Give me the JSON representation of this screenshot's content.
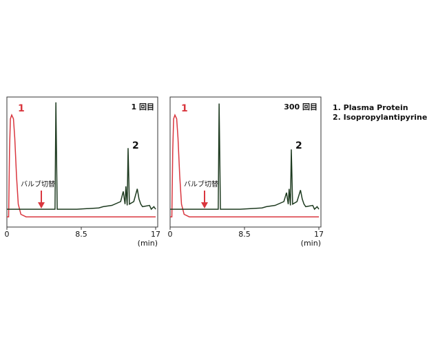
{
  "chart_data": [
    {
      "type": "line",
      "title": "1 回目",
      "xlabel": "(min)",
      "xlim": [
        0,
        17
      ],
      "xticks": [
        0,
        8.5,
        17
      ],
      "ylim": [
        0,
        100
      ],
      "annotations": [
        "1",
        "2",
        "バルブ切替"
      ],
      "series": [
        {
          "color": "#d9363e",
          "x": [
            0,
            0.2,
            0.3,
            0.4,
            0.55,
            0.75,
            0.9,
            1.1,
            1.3,
            1.6,
            2.2,
            17
          ],
          "values": [
            8,
            8,
            60,
            85,
            88,
            85,
            70,
            40,
            18,
            10,
            8,
            8
          ]
        },
        {
          "color": "#1d3a1f",
          "x": [
            0,
            5.5,
            5.6,
            5.75,
            8,
            10.5,
            11,
            12,
            13,
            13.3,
            13.5,
            13.6,
            13.75,
            13.85,
            14,
            14.5,
            14.9,
            15.1,
            15.3,
            15.5,
            16.3,
            16.5,
            16.8,
            17
          ],
          "values": [
            14,
            14,
            98,
            14,
            14,
            15,
            16,
            17,
            20,
            28,
            18,
            32,
            17,
            62,
            18,
            20,
            30,
            22,
            18,
            16,
            17,
            14,
            16,
            14
          ]
        }
      ]
    },
    {
      "type": "line",
      "title": "300 回目",
      "xlabel": "(min)",
      "xlim": [
        0,
        17
      ],
      "xticks": [
        0,
        8.5,
        17
      ],
      "ylim": [
        0,
        100
      ],
      "annotations": [
        "1",
        "2",
        "バルブ切替"
      ],
      "series": [
        {
          "color": "#d9363e",
          "x": [
            0,
            0.2,
            0.3,
            0.4,
            0.55,
            0.75,
            0.9,
            1.1,
            1.3,
            1.6,
            2.2,
            17
          ],
          "values": [
            8,
            8,
            60,
            85,
            88,
            85,
            70,
            40,
            18,
            10,
            8,
            8
          ]
        },
        {
          "color": "#1d3a1f",
          "x": [
            0,
            5.5,
            5.6,
            5.75,
            8,
            10.5,
            11,
            12,
            13,
            13.3,
            13.5,
            13.6,
            13.75,
            13.85,
            14,
            14.5,
            14.9,
            15.1,
            15.3,
            15.5,
            16.3,
            16.5,
            16.8,
            17
          ],
          "values": [
            14,
            14,
            97,
            14,
            14,
            15,
            16,
            17,
            20,
            27,
            18,
            30,
            17,
            61,
            18,
            20,
            29,
            22,
            18,
            16,
            17,
            14,
            16,
            14
          ]
        }
      ]
    }
  ],
  "legend": [
    "1. Plasma Protein",
    "2. Isopropylantipyrine"
  ]
}
